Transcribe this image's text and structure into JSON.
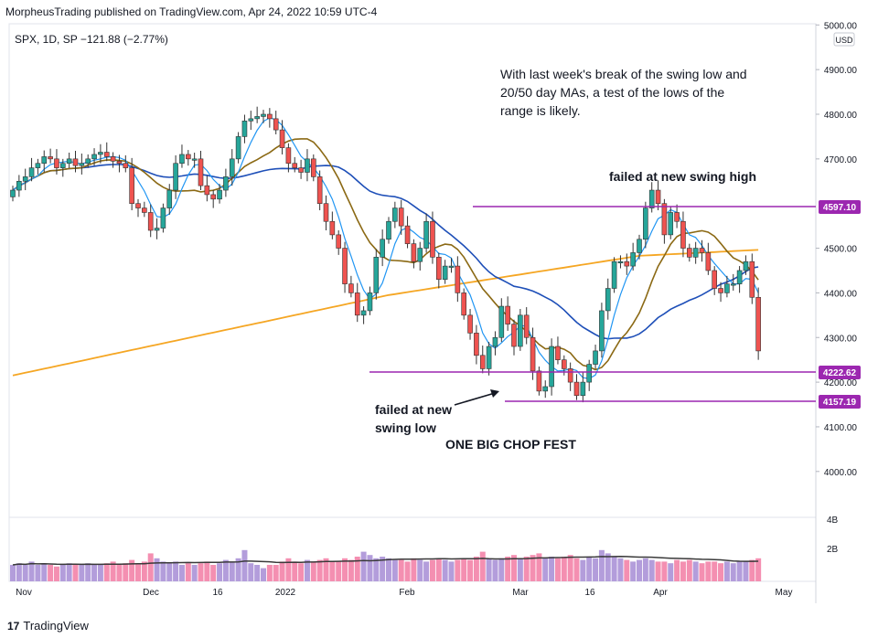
{
  "header": "MorpheusTrading published on TradingView.com, Apr 24, 2022 10:59 UTC-4",
  "footer": {
    "logo": "17",
    "brand": "TradingView"
  },
  "chart_data": {
    "type": "candlestick",
    "symbol_line": "SPX, 1D, SP  −121.88 (−2.77%)",
    "currency_badge": "USD",
    "price_ticks": [
      "5000.00",
      "4900.00",
      "4800.00",
      "4700.00",
      "4500.00",
      "4400.00",
      "4300.00",
      "4200.00",
      "4100.00",
      "4000.00"
    ],
    "price_ylim": [
      3900,
      5020
    ],
    "volume_ticks": [
      "4B",
      "2B"
    ],
    "x_labels": [
      "Nov",
      "Dec",
      "16",
      "2022",
      "Feb",
      "Mar",
      "16",
      "Apr",
      "May"
    ],
    "colors": {
      "up": "#26a69a",
      "down": "#ef5350",
      "ma20": "#2196f3",
      "ma50": "#8b6914",
      "ma200": "#f5a623",
      "sma": "#1e4fb8",
      "levels": "#9c27b0",
      "up_vol": "#b39ddb",
      "down_vol": "#f48fb1"
    },
    "price_labels": [
      {
        "label": "4597.10",
        "value": 4597.1
      },
      {
        "label": "4222.62",
        "value": 4222.62
      },
      {
        "label": "4157.19",
        "value": 4157.19
      }
    ],
    "annotations": [
      "With last week's break of the swing low and",
      "20/50 day MAs, a test of the lows of the",
      "range is likely.",
      "failed at new swing high",
      "failed at new",
      "swing low",
      "ONE BIG CHOP FEST"
    ],
    "closes": [
      4630,
      4650,
      4660,
      4680,
      4690,
      4705,
      4700,
      4680,
      4690,
      4700,
      4685,
      4690,
      4700,
      4710,
      4715,
      4705,
      4695,
      4690,
      4680,
      4600,
      4590,
      4580,
      4540,
      4545,
      4590,
      4630,
      4690,
      4710,
      4700,
      4700,
      4640,
      4620,
      4610,
      4630,
      4660,
      4700,
      4750,
      4785,
      4790,
      4795,
      4800,
      4790,
      4765,
      4725,
      4690,
      4680,
      4670,
      4700,
      4660,
      4600,
      4560,
      4530,
      4500,
      4420,
      4400,
      4350,
      4360,
      4400,
      4480,
      4520,
      4560,
      4590,
      4550,
      4510,
      4470,
      4500,
      4560,
      4480,
      4430,
      4460,
      4460,
      4400,
      4350,
      4310,
      4260,
      4230,
      4280,
      4300,
      4370,
      4330,
      4280,
      4350,
      4300,
      4225,
      4180,
      4190,
      4280,
      4250,
      4230,
      4200,
      4170,
      4200,
      4240,
      4270,
      4360,
      4410,
      4470,
      4470,
      4460,
      4490,
      4520,
      4590,
      4630,
      4600,
      4530,
      4580,
      4560,
      4500,
      4480,
      4500,
      4490,
      4450,
      4410,
      4400,
      4420,
      4420,
      4450,
      4470,
      4390,
      4270
    ],
    "volumes": [
      1.0,
      1.1,
      1.0,
      1.2,
      1.0,
      1.1,
      1.0,
      0.9,
      1.0,
      1.1,
      1.0,
      1.0,
      1.1,
      1.0,
      1.0,
      1.1,
      1.2,
      1.0,
      1.1,
      1.3,
      1.1,
      1.2,
      1.7,
      1.4,
      1.2,
      1.1,
      1.2,
      1.0,
      1.1,
      1.0,
      1.1,
      1.2,
      1.0,
      1.1,
      1.3,
      1.2,
      1.4,
      1.9,
      1.1,
      1.0,
      0.8,
      1.0,
      1.0,
      1.2,
      1.4,
      1.2,
      1.1,
      1.3,
      1.2,
      1.3,
      1.4,
      1.2,
      1.2,
      1.4,
      1.3,
      1.5,
      1.8,
      1.6,
      1.4,
      1.5,
      1.4,
      1.3,
      1.3,
      1.2,
      1.4,
      1.3,
      1.2,
      1.3,
      1.4,
      1.3,
      1.2,
      1.3,
      1.4,
      1.3,
      1.5,
      1.8,
      1.4,
      1.3,
      1.4,
      1.5,
      1.6,
      1.4,
      1.5,
      1.6,
      1.7,
      1.4,
      1.5,
      1.4,
      1.5,
      1.6,
      1.4,
      1.3,
      1.5,
      1.4,
      1.9,
      1.7,
      1.5,
      1.4,
      1.3,
      1.2,
      1.3,
      1.4,
      1.3,
      1.2,
      1.2,
      1.1,
      1.3,
      1.2,
      1.3,
      1.2,
      1.1,
      1.2,
      1.2,
      1.1,
      1.2,
      1.1,
      1.2,
      1.2,
      1.3,
      1.4
    ]
  }
}
